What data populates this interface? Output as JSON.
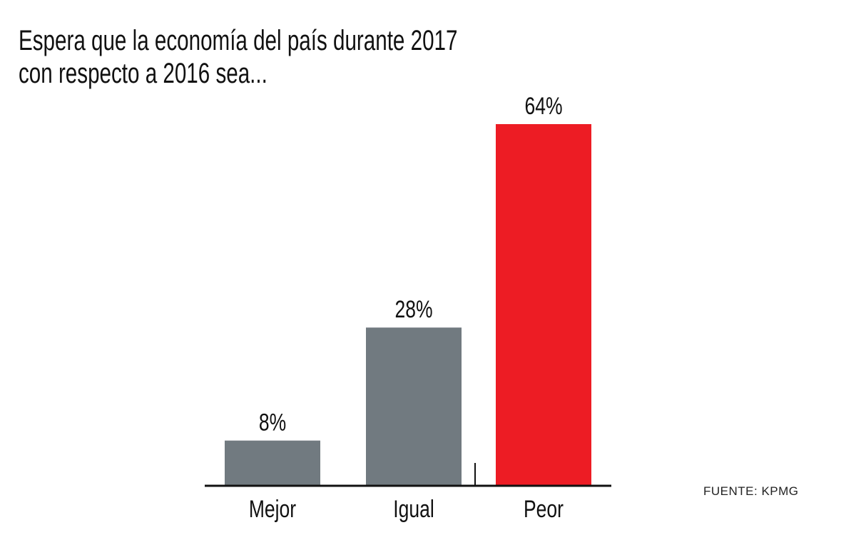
{
  "chart_data": {
    "type": "bar",
    "title": [
      "Espera que la economía del país durante 2017",
      "con respecto a 2016 sea..."
    ],
    "categories": [
      "Mejor",
      "Igual",
      "Peor"
    ],
    "values": [
      8,
      28,
      64
    ],
    "value_labels": [
      "8%",
      "28%",
      "64%"
    ],
    "colors": [
      "#717A80",
      "#717A80",
      "#ED1C24"
    ],
    "ylim": [
      0,
      64
    ],
    "grid": false,
    "xlabel": "",
    "ylabel": ""
  },
  "source": "FUENTE: KPMG"
}
